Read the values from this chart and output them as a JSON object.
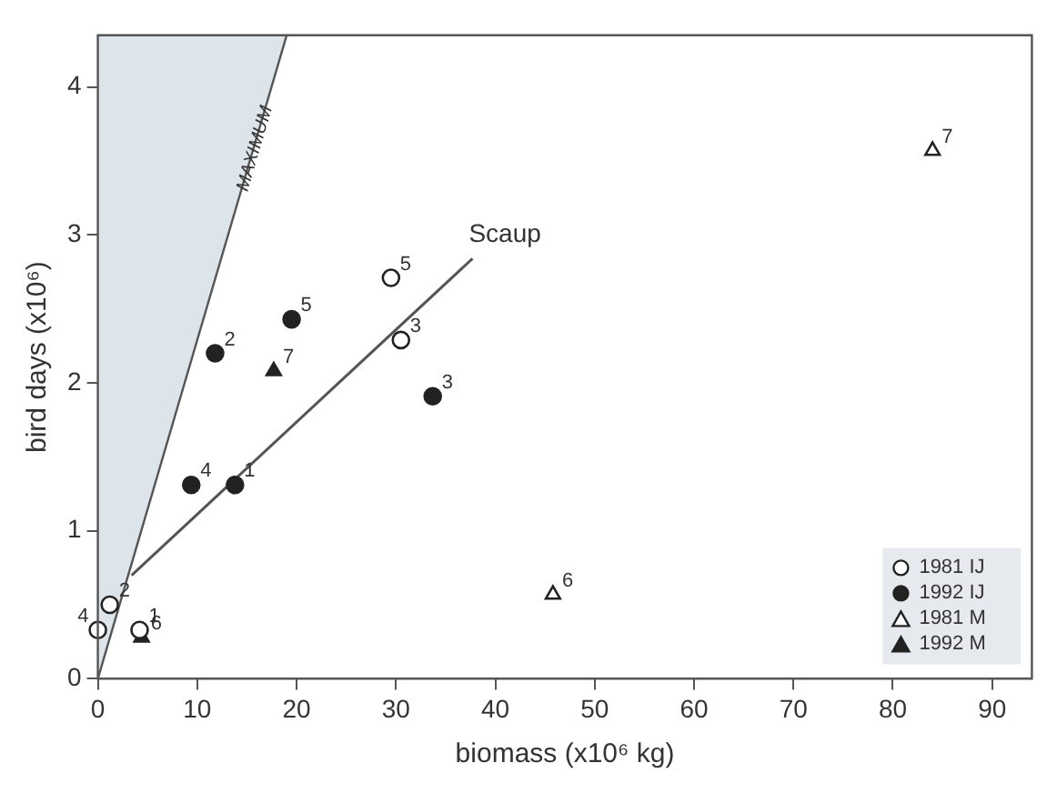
{
  "chart_data": {
    "type": "scatter",
    "xlabel": "biomass (x10⁶ kg)",
    "ylabel": "bird days (x10⁶)",
    "xlim": [
      0,
      94
    ],
    "ylim": [
      0,
      4.35
    ],
    "xticks": [
      0,
      10,
      20,
      30,
      40,
      50,
      60,
      70,
      80,
      90
    ],
    "yticks": [
      0,
      1,
      2,
      3,
      4
    ],
    "grid": false,
    "legend": "bottom right",
    "series": [
      {
        "name": "1981 IJ",
        "marker": "circle",
        "color": "#ffffff",
        "x": [
          0,
          1.2,
          4.2,
          29.5,
          30.5
        ],
        "values": [
          0.33,
          0.5,
          0.33,
          2.71,
          2.29
        ]
      },
      {
        "name": "1992 IJ",
        "marker": "circle",
        "color": "#222222",
        "x": [
          11.8,
          19.5,
          9.4,
          13.8,
          33.7
        ],
        "values": [
          2.2,
          2.43,
          1.31,
          1.31,
          1.91
        ]
      },
      {
        "name": "1981 M",
        "marker": "triangle",
        "color": "#ffffff",
        "x": [
          84,
          45.8
        ],
        "values": [
          3.57,
          0.57
        ]
      },
      {
        "name": "1992 M",
        "marker": "triangle",
        "color": "#222222",
        "x": [
          17.7,
          4.4
        ],
        "values": [
          2.08,
          0.28
        ]
      },
      {
        "name": "MAXIMUM",
        "type": "area",
        "color": "#dde4ea",
        "x": [
          0,
          19
        ],
        "values": [
          0,
          4.35
        ]
      },
      {
        "name": "Scaup",
        "type": "line",
        "color": "#555555",
        "x": [
          3.4,
          37.7
        ],
        "values": [
          0.7,
          2.84
        ]
      }
    ],
    "annotations": [
      {
        "text": "4",
        "x": 0,
        "y": 0.33
      },
      {
        "text": "2",
        "x": 1.2,
        "y": 0.5
      },
      {
        "text": "1",
        "x": 4.2,
        "y": 0.33
      },
      {
        "text": "5",
        "x": 29.5,
        "y": 2.71
      },
      {
        "text": "3",
        "x": 30.5,
        "y": 2.29
      },
      {
        "text": "2",
        "x": 11.8,
        "y": 2.2
      },
      {
        "text": "5",
        "x": 19.5,
        "y": 2.43
      },
      {
        "text": "4",
        "x": 9.4,
        "y": 1.31
      },
      {
        "text": "1",
        "x": 13.8,
        "y": 1.31
      },
      {
        "text": "3",
        "x": 33.7,
        "y": 1.91
      },
      {
        "text": "7",
        "x": 84,
        "y": 3.57
      },
      {
        "text": "6",
        "x": 45.8,
        "y": 0.57
      },
      {
        "text": "7",
        "x": 17.7,
        "y": 2.08
      },
      {
        "text": "6",
        "x": 4.4,
        "y": 0.28
      }
    ]
  }
}
